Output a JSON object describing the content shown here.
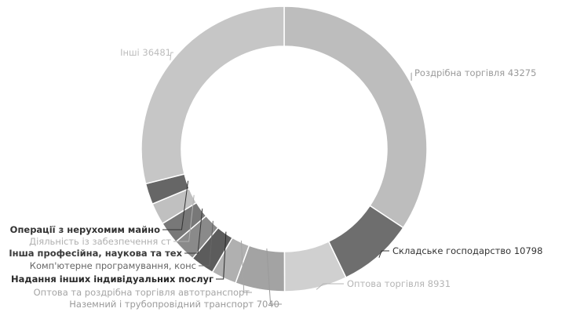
{
  "chart_data": {
    "type": "pie",
    "donut": true,
    "title": "",
    "legend": "none",
    "slices": [
      {
        "label": "Роздрібна торгівля 43275",
        "value": 43275,
        "color": "#bdbdbd",
        "text_color": "#9a9a9a",
        "bold": false
      },
      {
        "label": "Складське господарство 10798",
        "value": 10798,
        "color": "#6e6e6e",
        "text_color": "#333333",
        "bold": false
      },
      {
        "label": "Оптова торгівля 8931",
        "value": 8931,
        "color": "#d0d0d0",
        "text_color": "#b5b5b5",
        "bold": false
      },
      {
        "label": "Наземний і трубопровідний транспорт 7040",
        "value": 7040,
        "color": "#a3a3a3",
        "text_color": "#9a9a9a",
        "bold": false
      },
      {
        "label": "Оптова та роздрібна торгівля автотранспорт",
        "value": 3600,
        "color": "#b0b0b0",
        "text_color": "#a5a5a5",
        "bold": false
      },
      {
        "label": "Надання інших індивідуальних послуг",
        "value": 3400,
        "color": "#5c5c5c",
        "text_color": "#2a2a2a",
        "bold": true
      },
      {
        "label": "Комп'ютерне програмування, конс",
        "value": 3300,
        "color": "#8a8a8a",
        "text_color": "#666666",
        "bold": false
      },
      {
        "label": "Інша професійна, наукова та тех",
        "value": 3200,
        "color": "#787878",
        "text_color": "#3a3a3a",
        "bold": true
      },
      {
        "label": "Діяльність із забезпечення ст",
        "value": 3100,
        "color": "#c0c0c0",
        "text_color": "#b0b0b0",
        "bold": false
      },
      {
        "label": "Операції з нерухомим майно",
        "value": 3000,
        "color": "#666666",
        "text_color": "#333333",
        "bold": true
      },
      {
        "label": "Інші 36481",
        "value": 36481,
        "color": "#c6c6c6",
        "text_color": "#bdbdbd",
        "bold": false
      }
    ]
  }
}
